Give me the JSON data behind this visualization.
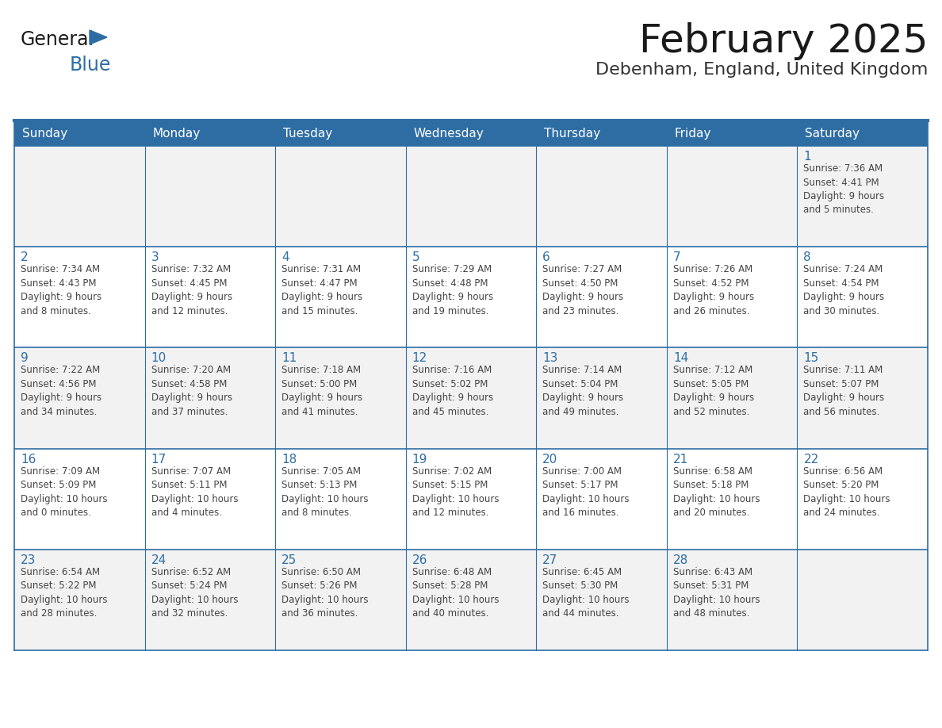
{
  "title": "February 2025",
  "subtitle": "Debenham, England, United Kingdom",
  "days_of_week": [
    "Sunday",
    "Monday",
    "Tuesday",
    "Wednesday",
    "Thursday",
    "Friday",
    "Saturday"
  ],
  "header_bg": "#2E6DA4",
  "header_text": "#FFFFFF",
  "row_colors": [
    "#F2F2F2",
    "#FFFFFF",
    "#F2F2F2",
    "#FFFFFF",
    "#F2F2F2"
  ],
  "border_color": "#2E6DA4",
  "title_color": "#1a1a1a",
  "subtitle_color": "#333333",
  "day_num_color": "#2E6DA4",
  "cell_text_color": "#444444",
  "logo_general_color": "#1a1a1a",
  "logo_blue_color": "#2E6DA4",
  "weeks": [
    [
      {
        "day": null,
        "info": null
      },
      {
        "day": null,
        "info": null
      },
      {
        "day": null,
        "info": null
      },
      {
        "day": null,
        "info": null
      },
      {
        "day": null,
        "info": null
      },
      {
        "day": null,
        "info": null
      },
      {
        "day": 1,
        "info": "Sunrise: 7:36 AM\nSunset: 4:41 PM\nDaylight: 9 hours\nand 5 minutes."
      }
    ],
    [
      {
        "day": 2,
        "info": "Sunrise: 7:34 AM\nSunset: 4:43 PM\nDaylight: 9 hours\nand 8 minutes."
      },
      {
        "day": 3,
        "info": "Sunrise: 7:32 AM\nSunset: 4:45 PM\nDaylight: 9 hours\nand 12 minutes."
      },
      {
        "day": 4,
        "info": "Sunrise: 7:31 AM\nSunset: 4:47 PM\nDaylight: 9 hours\nand 15 minutes."
      },
      {
        "day": 5,
        "info": "Sunrise: 7:29 AM\nSunset: 4:48 PM\nDaylight: 9 hours\nand 19 minutes."
      },
      {
        "day": 6,
        "info": "Sunrise: 7:27 AM\nSunset: 4:50 PM\nDaylight: 9 hours\nand 23 minutes."
      },
      {
        "day": 7,
        "info": "Sunrise: 7:26 AM\nSunset: 4:52 PM\nDaylight: 9 hours\nand 26 minutes."
      },
      {
        "day": 8,
        "info": "Sunrise: 7:24 AM\nSunset: 4:54 PM\nDaylight: 9 hours\nand 30 minutes."
      }
    ],
    [
      {
        "day": 9,
        "info": "Sunrise: 7:22 AM\nSunset: 4:56 PM\nDaylight: 9 hours\nand 34 minutes."
      },
      {
        "day": 10,
        "info": "Sunrise: 7:20 AM\nSunset: 4:58 PM\nDaylight: 9 hours\nand 37 minutes."
      },
      {
        "day": 11,
        "info": "Sunrise: 7:18 AM\nSunset: 5:00 PM\nDaylight: 9 hours\nand 41 minutes."
      },
      {
        "day": 12,
        "info": "Sunrise: 7:16 AM\nSunset: 5:02 PM\nDaylight: 9 hours\nand 45 minutes."
      },
      {
        "day": 13,
        "info": "Sunrise: 7:14 AM\nSunset: 5:04 PM\nDaylight: 9 hours\nand 49 minutes."
      },
      {
        "day": 14,
        "info": "Sunrise: 7:12 AM\nSunset: 5:05 PM\nDaylight: 9 hours\nand 52 minutes."
      },
      {
        "day": 15,
        "info": "Sunrise: 7:11 AM\nSunset: 5:07 PM\nDaylight: 9 hours\nand 56 minutes."
      }
    ],
    [
      {
        "day": 16,
        "info": "Sunrise: 7:09 AM\nSunset: 5:09 PM\nDaylight: 10 hours\nand 0 minutes."
      },
      {
        "day": 17,
        "info": "Sunrise: 7:07 AM\nSunset: 5:11 PM\nDaylight: 10 hours\nand 4 minutes."
      },
      {
        "day": 18,
        "info": "Sunrise: 7:05 AM\nSunset: 5:13 PM\nDaylight: 10 hours\nand 8 minutes."
      },
      {
        "day": 19,
        "info": "Sunrise: 7:02 AM\nSunset: 5:15 PM\nDaylight: 10 hours\nand 12 minutes."
      },
      {
        "day": 20,
        "info": "Sunrise: 7:00 AM\nSunset: 5:17 PM\nDaylight: 10 hours\nand 16 minutes."
      },
      {
        "day": 21,
        "info": "Sunrise: 6:58 AM\nSunset: 5:18 PM\nDaylight: 10 hours\nand 20 minutes."
      },
      {
        "day": 22,
        "info": "Sunrise: 6:56 AM\nSunset: 5:20 PM\nDaylight: 10 hours\nand 24 minutes."
      }
    ],
    [
      {
        "day": 23,
        "info": "Sunrise: 6:54 AM\nSunset: 5:22 PM\nDaylight: 10 hours\nand 28 minutes."
      },
      {
        "day": 24,
        "info": "Sunrise: 6:52 AM\nSunset: 5:24 PM\nDaylight: 10 hours\nand 32 minutes."
      },
      {
        "day": 25,
        "info": "Sunrise: 6:50 AM\nSunset: 5:26 PM\nDaylight: 10 hours\nand 36 minutes."
      },
      {
        "day": 26,
        "info": "Sunrise: 6:48 AM\nSunset: 5:28 PM\nDaylight: 10 hours\nand 40 minutes."
      },
      {
        "day": 27,
        "info": "Sunrise: 6:45 AM\nSunset: 5:30 PM\nDaylight: 10 hours\nand 44 minutes."
      },
      {
        "day": 28,
        "info": "Sunrise: 6:43 AM\nSunset: 5:31 PM\nDaylight: 10 hours\nand 48 minutes."
      },
      {
        "day": null,
        "info": null
      }
    ]
  ]
}
